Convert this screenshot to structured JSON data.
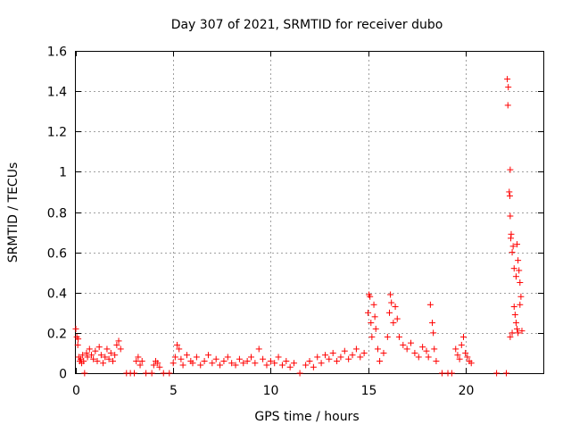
{
  "chart_data": {
    "type": "scatter",
    "title": "Day 307 of 2021, SRMTID for receiver dubo",
    "xlabel": "GPS time / hours",
    "ylabel": "SRMTID / TECUs",
    "xlim": [
      0,
      24
    ],
    "ylim": [
      0,
      1.6
    ],
    "xticks": [
      0,
      5,
      10,
      15,
      20
    ],
    "xtick_labels": [
      "0",
      "5",
      "10",
      "15",
      "20"
    ],
    "yticks": [
      0,
      0.2,
      0.4,
      0.6,
      0.8,
      1.0,
      1.2,
      1.4,
      1.6
    ],
    "ytick_labels": [
      "0",
      "0.2",
      "0.4",
      "0.6",
      "0.8",
      "1",
      "1.2",
      "1.4",
      "1.6"
    ],
    "grid": true,
    "marker": "+",
    "color": "#ff0000",
    "series": [
      {
        "name": "SRMTID",
        "points": [
          [
            0.0,
            0.22
          ],
          [
            0.05,
            0.18
          ],
          [
            0.1,
            0.14
          ],
          [
            0.12,
            0.17
          ],
          [
            0.15,
            0.08
          ],
          [
            0.2,
            0.06
          ],
          [
            0.25,
            0.07
          ],
          [
            0.3,
            0.05
          ],
          [
            0.35,
            0.09
          ],
          [
            0.4,
            0.06
          ],
          [
            0.45,
            0.0
          ],
          [
            0.55,
            0.1
          ],
          [
            0.6,
            0.08
          ],
          [
            0.7,
            0.12
          ],
          [
            0.8,
            0.09
          ],
          [
            0.9,
            0.07
          ],
          [
            1.0,
            0.11
          ],
          [
            1.1,
            0.06
          ],
          [
            1.2,
            0.13
          ],
          [
            1.3,
            0.09
          ],
          [
            1.4,
            0.05
          ],
          [
            1.5,
            0.08
          ],
          [
            1.6,
            0.12
          ],
          [
            1.7,
            0.07
          ],
          [
            1.8,
            0.1
          ],
          [
            1.9,
            0.06
          ],
          [
            2.0,
            0.09
          ],
          [
            2.1,
            0.14
          ],
          [
            2.2,
            0.16
          ],
          [
            2.3,
            0.12
          ],
          [
            2.6,
            0.0
          ],
          [
            2.8,
            0.0
          ],
          [
            3.0,
            0.0
          ],
          [
            3.1,
            0.06
          ],
          [
            3.2,
            0.08
          ],
          [
            3.3,
            0.04
          ],
          [
            3.4,
            0.06
          ],
          [
            3.6,
            0.0
          ],
          [
            3.9,
            0.0
          ],
          [
            4.0,
            0.04
          ],
          [
            4.1,
            0.06
          ],
          [
            4.2,
            0.05
          ],
          [
            4.3,
            0.03
          ],
          [
            4.5,
            0.0
          ],
          [
            4.8,
            0.0
          ],
          [
            5.0,
            0.05
          ],
          [
            5.1,
            0.08
          ],
          [
            5.2,
            0.14
          ],
          [
            5.3,
            0.12
          ],
          [
            5.4,
            0.07
          ],
          [
            5.5,
            0.04
          ],
          [
            5.7,
            0.09
          ],
          [
            5.9,
            0.06
          ],
          [
            6.0,
            0.05
          ],
          [
            6.2,
            0.08
          ],
          [
            6.4,
            0.04
          ],
          [
            6.6,
            0.06
          ],
          [
            6.8,
            0.09
          ],
          [
            7.0,
            0.05
          ],
          [
            7.2,
            0.07
          ],
          [
            7.4,
            0.04
          ],
          [
            7.6,
            0.06
          ],
          [
            7.8,
            0.08
          ],
          [
            8.0,
            0.05
          ],
          [
            8.2,
            0.04
          ],
          [
            8.4,
            0.07
          ],
          [
            8.6,
            0.05
          ],
          [
            8.8,
            0.06
          ],
          [
            9.0,
            0.08
          ],
          [
            9.2,
            0.05
          ],
          [
            9.4,
            0.12
          ],
          [
            9.6,
            0.07
          ],
          [
            9.8,
            0.04
          ],
          [
            10.0,
            0.06
          ],
          [
            10.2,
            0.05
          ],
          [
            10.4,
            0.08
          ],
          [
            10.6,
            0.04
          ],
          [
            10.8,
            0.06
          ],
          [
            11.0,
            0.03
          ],
          [
            11.2,
            0.05
          ],
          [
            11.5,
            0.0
          ],
          [
            11.8,
            0.04
          ],
          [
            12.0,
            0.06
          ],
          [
            12.2,
            0.03
          ],
          [
            12.4,
            0.08
          ],
          [
            12.6,
            0.05
          ],
          [
            12.8,
            0.09
          ],
          [
            13.0,
            0.07
          ],
          [
            13.2,
            0.1
          ],
          [
            13.4,
            0.06
          ],
          [
            13.6,
            0.08
          ],
          [
            13.8,
            0.11
          ],
          [
            14.0,
            0.07
          ],
          [
            14.2,
            0.09
          ],
          [
            14.4,
            0.12
          ],
          [
            14.6,
            0.08
          ],
          [
            14.8,
            0.1
          ],
          [
            15.0,
            0.3
          ],
          [
            15.05,
            0.39
          ],
          [
            15.1,
            0.38
          ],
          [
            15.15,
            0.25
          ],
          [
            15.2,
            0.18
          ],
          [
            15.3,
            0.34
          ],
          [
            15.35,
            0.28
          ],
          [
            15.4,
            0.22
          ],
          [
            15.5,
            0.12
          ],
          [
            15.6,
            0.06
          ],
          [
            15.8,
            0.1
          ],
          [
            16.0,
            0.18
          ],
          [
            16.1,
            0.3
          ],
          [
            16.15,
            0.39
          ],
          [
            16.2,
            0.35
          ],
          [
            16.3,
            0.25
          ],
          [
            16.4,
            0.33
          ],
          [
            16.5,
            0.27
          ],
          [
            16.6,
            0.18
          ],
          [
            16.8,
            0.14
          ],
          [
            17.0,
            0.12
          ],
          [
            17.2,
            0.15
          ],
          [
            17.4,
            0.1
          ],
          [
            17.6,
            0.08
          ],
          [
            17.8,
            0.13
          ],
          [
            18.0,
            0.11
          ],
          [
            18.1,
            0.08
          ],
          [
            18.2,
            0.34
          ],
          [
            18.3,
            0.25
          ],
          [
            18.35,
            0.2
          ],
          [
            18.4,
            0.12
          ],
          [
            18.5,
            0.06
          ],
          [
            18.8,
            0.0
          ],
          [
            19.1,
            0.0
          ],
          [
            19.3,
            0.0
          ],
          [
            19.5,
            0.12
          ],
          [
            19.6,
            0.09
          ],
          [
            19.7,
            0.07
          ],
          [
            19.8,
            0.14
          ],
          [
            19.9,
            0.18
          ],
          [
            20.0,
            0.1
          ],
          [
            20.1,
            0.08
          ],
          [
            20.2,
            0.06
          ],
          [
            20.3,
            0.05
          ],
          [
            21.6,
            0.0
          ],
          [
            22.1,
            0.0
          ],
          [
            22.15,
            1.46
          ],
          [
            22.2,
            1.42
          ],
          [
            22.18,
            1.33
          ],
          [
            22.3,
            1.01
          ],
          [
            22.25,
            0.9
          ],
          [
            22.28,
            0.88
          ],
          [
            22.3,
            0.78
          ],
          [
            22.35,
            0.69
          ],
          [
            22.33,
            0.67
          ],
          [
            22.4,
            0.6
          ],
          [
            22.45,
            0.63
          ],
          [
            22.5,
            0.52
          ],
          [
            22.6,
            0.48
          ],
          [
            22.65,
            0.64
          ],
          [
            22.7,
            0.56
          ],
          [
            22.75,
            0.51
          ],
          [
            22.8,
            0.45
          ],
          [
            22.85,
            0.38
          ],
          [
            22.5,
            0.33
          ],
          [
            22.55,
            0.29
          ],
          [
            22.6,
            0.25
          ],
          [
            22.65,
            0.22
          ],
          [
            22.4,
            0.2
          ],
          [
            22.3,
            0.18
          ],
          [
            22.7,
            0.2
          ],
          [
            22.9,
            0.21
          ],
          [
            22.8,
            0.34
          ]
        ]
      }
    ]
  }
}
